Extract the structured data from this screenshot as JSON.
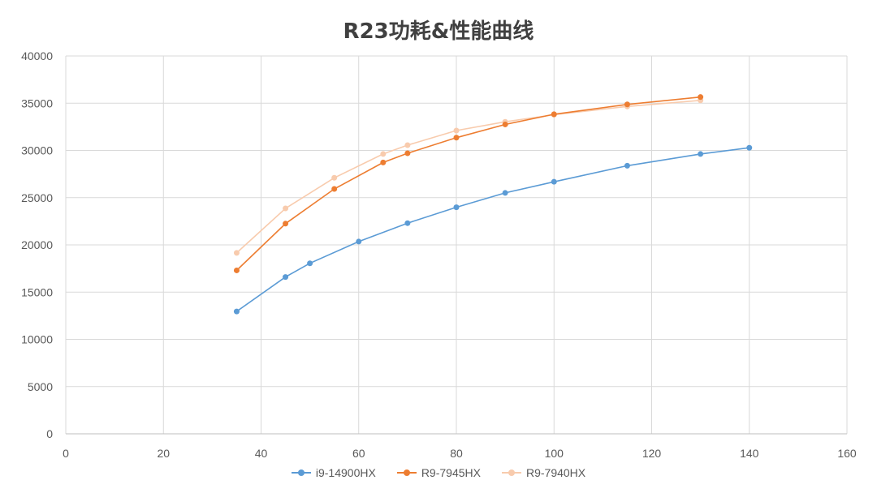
{
  "chart_data": {
    "type": "line",
    "title": "R23功耗&性能曲线",
    "xlabel": "",
    "ylabel": "",
    "xlim": [
      0,
      160
    ],
    "ylim": [
      0,
      40000
    ],
    "x_ticks": [
      0,
      20,
      40,
      60,
      80,
      100,
      120,
      140,
      160
    ],
    "y_ticks": [
      0,
      5000,
      10000,
      15000,
      20000,
      25000,
      30000,
      35000,
      40000
    ],
    "grid": true,
    "legend_position": "bottom",
    "series": [
      {
        "name": "i9-14900HX",
        "color": "#5b9bd5",
        "points": [
          [
            35,
            12950
          ],
          [
            45,
            16600
          ],
          [
            50,
            18050
          ],
          [
            60,
            20350
          ],
          [
            70,
            22300
          ],
          [
            80,
            23980
          ],
          [
            90,
            25500
          ],
          [
            100,
            26680
          ],
          [
            115,
            28380
          ],
          [
            130,
            29620
          ],
          [
            140,
            30280
          ]
        ]
      },
      {
        "name": "R9-7945HX",
        "color": "#ed7d31",
        "points": [
          [
            35,
            17300
          ],
          [
            45,
            22250
          ],
          [
            55,
            25920
          ],
          [
            65,
            28720
          ],
          [
            70,
            29700
          ],
          [
            80,
            31350
          ],
          [
            90,
            32750
          ],
          [
            100,
            33830
          ],
          [
            115,
            34870
          ],
          [
            130,
            35650
          ]
        ]
      },
      {
        "name": "R9-7940HX",
        "color": "#f8cbad",
        "points": [
          [
            35,
            19150
          ],
          [
            45,
            23860
          ],
          [
            55,
            27100
          ],
          [
            65,
            29620
          ],
          [
            70,
            30560
          ],
          [
            80,
            32100
          ],
          [
            90,
            33030
          ],
          [
            100,
            33780
          ],
          [
            115,
            34650
          ],
          [
            130,
            35300
          ]
        ]
      }
    ]
  }
}
